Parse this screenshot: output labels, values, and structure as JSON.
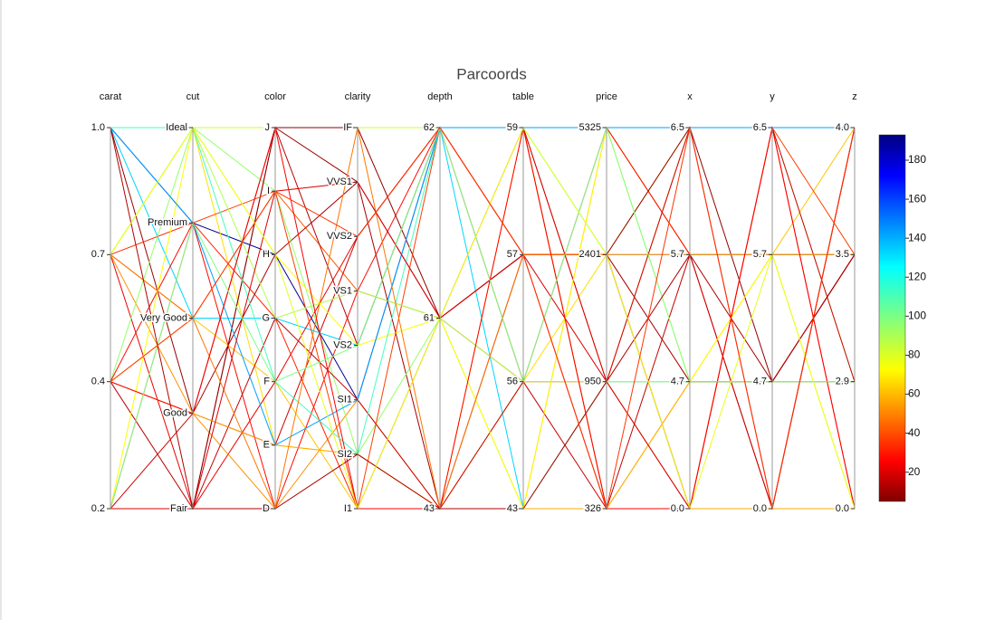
{
  "chart_data": {
    "type": "parcoords",
    "title": "Parcoords",
    "dimensions": [
      {
        "label": "carat",
        "ticks": [
          0.2,
          0.4,
          0.7,
          {
            "value": 1,
            "label": "1.0"
          }
        ]
      },
      {
        "label": "cut",
        "ticks": [
          "Fair",
          "Good",
          "Very Good",
          "Premium",
          "Ideal"
        ]
      },
      {
        "label": "color",
        "ticks": [
          "D",
          "E",
          "F",
          "G",
          "H",
          "I",
          "J"
        ]
      },
      {
        "label": "clarity",
        "ticks": [
          "I1",
          "SI2",
          "SI1",
          "VS2",
          "VS1",
          "VVS2",
          "VVS1",
          "IF"
        ]
      },
      {
        "label": "depth",
        "ticks": [
          43,
          61,
          62
        ]
      },
      {
        "label": "table",
        "ticks": [
          43,
          56,
          57,
          59
        ]
      },
      {
        "label": "price",
        "ticks": [
          326,
          950,
          2401,
          5325
        ]
      },
      {
        "label": "x",
        "ticks": [
          {
            "value": 0,
            "label": "0.0"
          },
          4.7,
          5.7,
          6.5
        ]
      },
      {
        "label": "y",
        "ticks": [
          {
            "value": 0,
            "label": "0.0"
          },
          4.7,
          5.7,
          6.5
        ]
      },
      {
        "label": "z",
        "ticks": [
          {
            "value": 0,
            "label": "0.0"
          },
          2.9,
          3.5,
          {
            "value": 4,
            "label": "4.0"
          }
        ]
      }
    ],
    "colorscale": "jet-reversed",
    "clim": [
      5,
      193
    ],
    "cticks": [
      20,
      40,
      60,
      80,
      100,
      120,
      140,
      160,
      180
    ],
    "lines": [
      {
        "values": [
          1,
          "Premium",
          "H",
          "SI1",
          62,
          59,
          5325,
          6.5,
          6.5,
          4
        ],
        "color": 190
      },
      {
        "values": [
          1,
          "Very Good",
          "G",
          "VS2",
          62,
          43,
          950,
          4.7,
          4.7,
          2.9
        ],
        "color": 130
      },
      {
        "values": [
          1,
          "Good",
          "J",
          "VVS1",
          61,
          57,
          2401,
          0,
          0,
          0
        ],
        "color": 10
      },
      {
        "values": [
          1,
          "Ideal",
          "J",
          "IF",
          62,
          59,
          5325,
          5.7,
          5.7,
          3.5
        ],
        "color": 85
      },
      {
        "values": [
          0.7,
          "Ideal",
          "E",
          "SI2",
          43,
          56,
          2401,
          6.5,
          6.5,
          4
        ],
        "color": 70
      },
      {
        "values": [
          0.7,
          "Very Good",
          "I",
          "VS1",
          61,
          59,
          950,
          0,
          0,
          0
        ],
        "color": 45
      },
      {
        "values": [
          0.7,
          "Fair",
          "F",
          "VVS2",
          62,
          57,
          326,
          4.7,
          4.7,
          2.9
        ],
        "color": 25
      },
      {
        "values": [
          0.7,
          "Good",
          "D",
          "SI1",
          43,
          43,
          5325,
          5.7,
          5.7,
          3.5
        ],
        "color": 55
      },
      {
        "values": [
          0.7,
          "Premium",
          "G",
          "I1",
          61,
          56,
          950,
          6.5,
          6.5,
          0
        ],
        "color": 35
      },
      {
        "values": [
          0.4,
          "Fair",
          "J",
          "VS2",
          62,
          59,
          326,
          0,
          0,
          4
        ],
        "color": 15
      },
      {
        "values": [
          0.4,
          "Good",
          "H",
          "VVS1",
          43,
          57,
          2401,
          4.7,
          4.7,
          3.5
        ],
        "color": 12
      },
      {
        "values": [
          0.4,
          "Ideal",
          "I",
          "SI2",
          61,
          43,
          950,
          6.5,
          6.5,
          2.9
        ],
        "color": 95
      },
      {
        "values": [
          0.4,
          "Premium",
          "D",
          "VS1",
          62,
          56,
          5325,
          5.7,
          0,
          0
        ],
        "color": 30
      },
      {
        "values": [
          0.4,
          "Very Good",
          "F",
          "I1",
          43,
          59,
          326,
          4.7,
          5.7,
          4
        ],
        "color": 65
      },
      {
        "values": [
          0.2,
          "Fair",
          "J",
          "IF",
          61,
          57,
          2401,
          6.5,
          4.7,
          3.5
        ],
        "color": 8
      },
      {
        "values": [
          0.2,
          "Good",
          "E",
          "VVS2",
          62,
          59,
          950,
          0,
          6.5,
          2.9
        ],
        "color": 20
      },
      {
        "values": [
          0.2,
          "Fair",
          "G",
          "SI1",
          43,
          56,
          326,
          5.7,
          0,
          4
        ],
        "color": 18
      },
      {
        "values": [
          0.2,
          "Ideal",
          "H",
          "VS2",
          61,
          43,
          5325,
          4.7,
          5.7,
          0
        ],
        "color": 75
      },
      {
        "values": [
          0.2,
          "Premium",
          "I",
          "I1",
          62,
          57,
          2401,
          0,
          6.5,
          3.5
        ],
        "color": 40
      },
      {
        "values": [
          1,
          "Ideal",
          "F",
          "SI2",
          62,
          59,
          2401,
          5.7,
          5.7,
          3.5
        ],
        "color": 110
      },
      {
        "values": [
          0.7,
          "Ideal",
          "G",
          "VS1",
          61,
          56,
          950,
          4.7,
          4.7,
          2.9
        ],
        "color": 90
      },
      {
        "values": [
          0.4,
          "Good",
          "E",
          "SI2",
          43,
          43,
          326,
          0,
          0,
          0
        ],
        "color": 60
      },
      {
        "values": [
          1,
          "Premium",
          "E",
          "SI1",
          62,
          59,
          5325,
          6.5,
          6.5,
          4
        ],
        "color": 140
      },
      {
        "values": [
          0.7,
          "Very Good",
          "D",
          "IF",
          43,
          57,
          2401,
          5.7,
          5.7,
          3.5
        ],
        "color": 50
      },
      {
        "values": [
          0.2,
          "Fair",
          "I",
          "VVS1",
          61,
          57,
          950,
          6.5,
          0,
          4
        ],
        "color": 22
      },
      {
        "values": [
          0.4,
          "Good",
          "J",
          "I1",
          43,
          59,
          326,
          0,
          6.5,
          0
        ],
        "color": 28
      },
      {
        "values": [
          0.2,
          "Premium",
          "F",
          "VS2",
          62,
          56,
          5325,
          4.7,
          4.7,
          2.9
        ],
        "color": 100
      },
      {
        "values": [
          1,
          "Fair",
          "D",
          "SI2",
          43,
          43,
          950,
          5.7,
          4.7,
          3.5
        ],
        "color": 14
      },
      {
        "values": [
          0.7,
          "Ideal",
          "H",
          "I1",
          61,
          59,
          2401,
          0,
          5.7,
          0
        ],
        "color": 80
      },
      {
        "values": [
          0.4,
          "Very Good",
          "I",
          "VVS2",
          62,
          57,
          326,
          6.5,
          0,
          4
        ],
        "color": 38
      }
    ]
  }
}
